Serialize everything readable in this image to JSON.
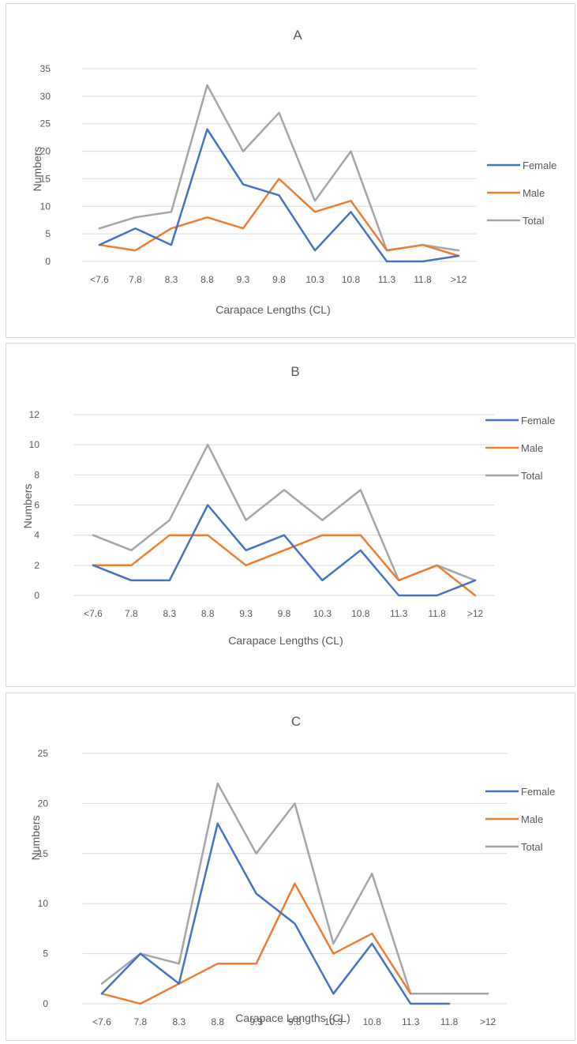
{
  "charts": {
    "A": {
      "title": "A",
      "ylabel": "Numbers",
      "xlabel": "Carapace Lengths (CL)",
      "legend": {
        "female": "Female",
        "male": "Male",
        "total": "Total"
      }
    },
    "B": {
      "title": "B",
      "ylabel": "Numbers",
      "xlabel": "Carapace Lengths (CL)",
      "legend": {
        "female": "Female",
        "male": "Male",
        "total": "Total"
      }
    },
    "C": {
      "title": "C",
      "ylabel": "Numbers",
      "xlabel": "Carapace Lengths (CL)",
      "legend": {
        "female": "Female",
        "male": "Male",
        "total": "Total"
      }
    }
  },
  "chart_data": [
    {
      "type": "line",
      "title": "A",
      "xlabel": "Carapace Lengths (CL)",
      "ylabel": "Numbers",
      "categories": [
        "<7.6",
        "7.8",
        "8.3",
        "8.8",
        "9.3",
        "9.8",
        "10.3",
        "10.8",
        "11.3",
        "11.8",
        ">12"
      ],
      "ylim": [
        0,
        35
      ],
      "yticks": [
        0,
        5,
        10,
        15,
        20,
        25,
        30,
        35
      ],
      "grid": true,
      "legend_position": "right",
      "series": [
        {
          "name": "Female",
          "color": "#4472c4",
          "values": [
            3,
            6,
            3,
            24,
            14,
            12,
            2,
            9,
            0,
            0,
            1
          ]
        },
        {
          "name": "Male",
          "color": "#ed7d31",
          "values": [
            3,
            2,
            6,
            8,
            6,
            15,
            9,
            11,
            2,
            3,
            1
          ]
        },
        {
          "name": "Total",
          "color": "#a5a5a5",
          "values": [
            6,
            8,
            9,
            32,
            20,
            27,
            11,
            20,
            2,
            3,
            2
          ]
        }
      ]
    },
    {
      "type": "line",
      "title": "B",
      "xlabel": "Carapace Lengths (CL)",
      "ylabel": "Numbers",
      "categories": [
        "<7.6",
        "7.8",
        "8.3",
        "8.8",
        "9.3",
        "9.8",
        "10.3",
        "10.8",
        "11.3",
        "11.8",
        ">12"
      ],
      "ylim": [
        0,
        12
      ],
      "yticks": [
        0,
        2,
        4,
        6,
        8,
        10,
        12
      ],
      "grid": true,
      "legend_position": "top-right",
      "series": [
        {
          "name": "Female",
          "color": "#4472c4",
          "values": [
            2,
            1,
            1,
            6,
            3,
            4,
            1,
            3,
            0,
            0,
            1
          ]
        },
        {
          "name": "Male",
          "color": "#ed7d31",
          "values": [
            2,
            2,
            4,
            4,
            2,
            3,
            4,
            4,
            1,
            2,
            0
          ]
        },
        {
          "name": "Total",
          "color": "#a5a5a5",
          "values": [
            4,
            3,
            5,
            10,
            5,
            7,
            5,
            7,
            1,
            2,
            1
          ]
        }
      ]
    },
    {
      "type": "line",
      "title": "C",
      "xlabel": "Carapace Lengths (CL)",
      "ylabel": "Numbers",
      "categories": [
        "<7.6",
        "7.8",
        "8.3",
        "8.8",
        "9.3",
        "9.8",
        "10.3",
        "10.8",
        "11.3",
        "11.8",
        ">12"
      ],
      "ylim": [
        0,
        25
      ],
      "yticks": [
        0,
        5,
        10,
        15,
        20,
        25
      ],
      "grid": true,
      "legend_position": "top-right",
      "series": [
        {
          "name": "Female",
          "color": "#4472c4",
          "values": [
            1,
            5,
            2,
            18,
            11,
            8,
            1,
            6,
            0,
            0,
            null
          ]
        },
        {
          "name": "Male",
          "color": "#ed7d31",
          "values": [
            1,
            0,
            2,
            4,
            4,
            12,
            5,
            7,
            1,
            null,
            null
          ]
        },
        {
          "name": "Total",
          "color": "#a5a5a5",
          "values": [
            2,
            5,
            4,
            22,
            15,
            20,
            6,
            13,
            1,
            1,
            1
          ]
        }
      ]
    }
  ]
}
